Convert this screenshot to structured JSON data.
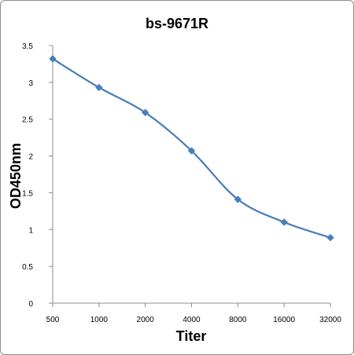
{
  "chart_data": {
    "type": "line",
    "title": "bs-9671R",
    "xlabel": "Titer",
    "ylabel": "OD450nm",
    "categories": [
      "500",
      "1000",
      "2000",
      "4000",
      "8000",
      "16000",
      "32000"
    ],
    "series": [
      {
        "values": [
          3.32,
          2.93,
          2.59,
          2.07,
          1.41,
          1.1,
          0.89
        ]
      }
    ],
    "yticks": [
      "0",
      "0.5",
      "1",
      "1.5",
      "2",
      "2.5",
      "3",
      "3.5"
    ],
    "ylim": [
      0,
      3.5
    ],
    "grid": false,
    "legend": "none",
    "colors": {
      "series": "#4a7ebb",
      "axis": "#8c8c8c"
    }
  }
}
